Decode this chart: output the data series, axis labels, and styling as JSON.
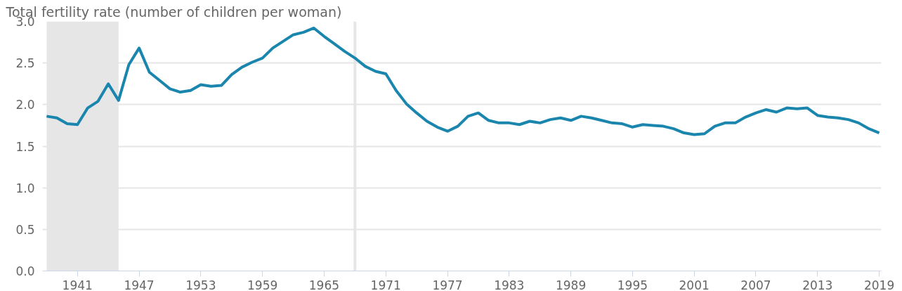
{
  "chart_data": {
    "type": "line",
    "title": "Total fertility rate (number of children per woman)",
    "x": [
      1938,
      1939,
      1940,
      1941,
      1942,
      1943,
      1944,
      1945,
      1946,
      1947,
      1948,
      1949,
      1950,
      1951,
      1952,
      1953,
      1954,
      1955,
      1956,
      1957,
      1958,
      1959,
      1960,
      1961,
      1962,
      1963,
      1964,
      1965,
      1966,
      1967,
      1968,
      1969,
      1970,
      1971,
      1972,
      1973,
      1974,
      1975,
      1976,
      1977,
      1978,
      1979,
      1980,
      1981,
      1982,
      1983,
      1984,
      1985,
      1986,
      1987,
      1988,
      1989,
      1990,
      1991,
      1992,
      1993,
      1994,
      1995,
      1996,
      1997,
      1998,
      1999,
      2000,
      2001,
      2002,
      2003,
      2004,
      2005,
      2006,
      2007,
      2008,
      2009,
      2010,
      2011,
      2012,
      2013,
      2014,
      2015,
      2016,
      2017,
      2018,
      2019
    ],
    "series": [
      {
        "color": "#1a86ae",
        "values": [
          1.86,
          1.84,
          1.77,
          1.76,
          1.96,
          2.04,
          2.25,
          2.05,
          2.48,
          2.68,
          2.39,
          2.29,
          2.19,
          2.15,
          2.17,
          2.24,
          2.22,
          2.23,
          2.36,
          2.45,
          2.51,
          2.56,
          2.68,
          2.76,
          2.84,
          2.87,
          2.92,
          2.82,
          2.73,
          2.64,
          2.56,
          2.46,
          2.4,
          2.37,
          2.17,
          2.01,
          1.9,
          1.8,
          1.73,
          1.68,
          1.74,
          1.86,
          1.9,
          1.81,
          1.78,
          1.78,
          1.76,
          1.8,
          1.78,
          1.82,
          1.84,
          1.81,
          1.86,
          1.84,
          1.81,
          1.78,
          1.77,
          1.73,
          1.76,
          1.75,
          1.74,
          1.71,
          1.66,
          1.64,
          1.65,
          1.74,
          1.78,
          1.78,
          1.85,
          1.9,
          1.94,
          1.91,
          1.96,
          1.95,
          1.96,
          1.87,
          1.85,
          1.84,
          1.82,
          1.78,
          1.71,
          1.66
        ]
      }
    ],
    "xlim": [
      1937.6,
      2019.2
    ],
    "xticks": [
      1941,
      1947,
      1953,
      1959,
      1965,
      1971,
      1977,
      1983,
      1989,
      1995,
      2001,
      2007,
      2013,
      2019
    ],
    "ylim": [
      0,
      3.0
    ],
    "yticks": [
      {
        "value": 0,
        "label": "0.0"
      },
      {
        "value": 0.5,
        "label": "0.5"
      },
      {
        "value": 1,
        "label": "1.0"
      },
      {
        "value": 1.5,
        "label": "1.5"
      },
      {
        "value": 2,
        "label": "2.0"
      },
      {
        "value": 2.5,
        "label": "2.5"
      },
      {
        "value": 3,
        "label": "3.0"
      }
    ],
    "grid": "y",
    "marker": "none",
    "line_style": "solid",
    "bands": [
      {
        "axis": "x",
        "from": 1938,
        "to": 1945,
        "color": "#e6e6e6"
      }
    ],
    "ref_lines": [
      {
        "axis": "x",
        "value": 1968,
        "color": "#e6e6e6"
      }
    ]
  }
}
